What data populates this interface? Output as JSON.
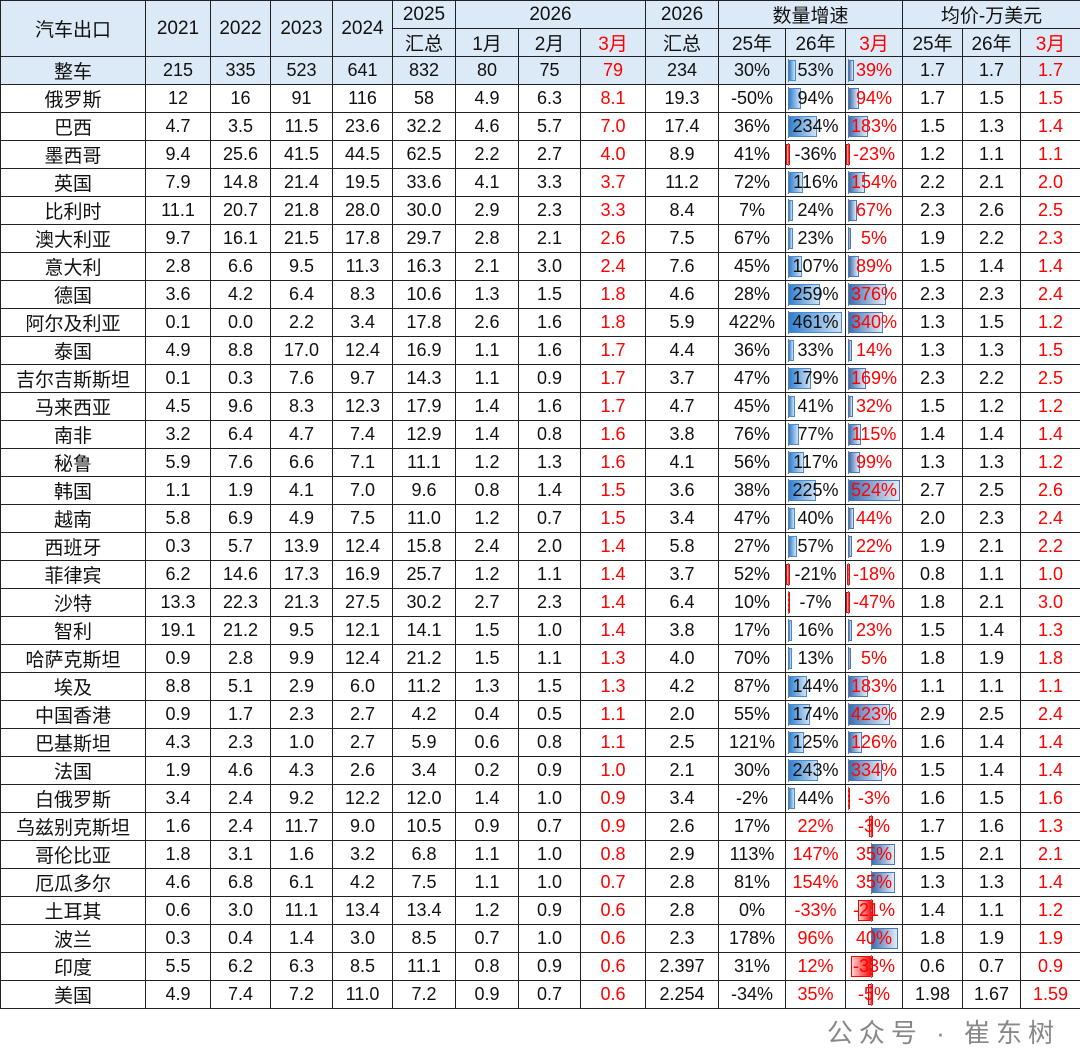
{
  "header": {
    "label": "汽车出口",
    "years": [
      "2021",
      "2022",
      "2023",
      "2024"
    ],
    "y2025": "2025",
    "sum": "汇总",
    "y2026": "2026",
    "months": [
      "1月",
      "2月",
      "3月"
    ],
    "growth": "数量增速",
    "growth_cols": [
      "25年",
      "26年",
      "3月"
    ],
    "price": "均价-万美元",
    "price_cols": [
      "25年",
      "26年",
      "3月"
    ]
  },
  "colors": {
    "accent_red": "#ff0000",
    "header_bg": "#dce9f6",
    "bar_blue": "#2f7fd0"
  },
  "rows": [
    [
      "整车",
      "215",
      "335",
      "523",
      "641",
      "832",
      "80",
      "75",
      "79",
      "234",
      "30%",
      "53%",
      "39%",
      "1.7",
      "1.7",
      "1.7"
    ],
    [
      "俄罗斯",
      "12",
      "16",
      "91",
      "116",
      "58",
      "4.9",
      "6.3",
      "8.1",
      "19.3",
      "-50%",
      "94%",
      "94%",
      "1.7",
      "1.5",
      "1.5"
    ],
    [
      "巴西",
      "4.7",
      "3.5",
      "11.5",
      "23.6",
      "32.2",
      "4.6",
      "5.7",
      "7.0",
      "17.4",
      "36%",
      "234%",
      "183%",
      "1.5",
      "1.3",
      "1.4"
    ],
    [
      "墨西哥",
      "9.4",
      "25.6",
      "41.5",
      "44.5",
      "62.5",
      "2.2",
      "2.7",
      "4.0",
      "8.9",
      "41%",
      "-36%",
      "-23%",
      "1.2",
      "1.1",
      "1.1"
    ],
    [
      "英国",
      "7.9",
      "14.8",
      "21.4",
      "19.5",
      "33.6",
      "4.1",
      "3.3",
      "3.7",
      "11.2",
      "72%",
      "116%",
      "154%",
      "2.2",
      "2.1",
      "2.0"
    ],
    [
      "比利时",
      "11.1",
      "20.7",
      "21.8",
      "28.0",
      "30.0",
      "2.9",
      "2.3",
      "3.3",
      "8.4",
      "7%",
      "24%",
      "67%",
      "2.3",
      "2.6",
      "2.5"
    ],
    [
      "澳大利亚",
      "9.7",
      "16.1",
      "21.5",
      "17.8",
      "29.7",
      "2.8",
      "2.1",
      "2.6",
      "7.5",
      "67%",
      "23%",
      "5%",
      "1.9",
      "2.2",
      "2.3"
    ],
    [
      "意大利",
      "2.8",
      "6.6",
      "9.5",
      "11.3",
      "16.3",
      "2.1",
      "3.0",
      "2.4",
      "7.6",
      "45%",
      "107%",
      "89%",
      "1.5",
      "1.4",
      "1.4"
    ],
    [
      "德国",
      "3.6",
      "4.2",
      "6.4",
      "8.3",
      "10.6",
      "1.3",
      "1.5",
      "1.8",
      "4.6",
      "28%",
      "259%",
      "376%",
      "2.3",
      "2.3",
      "2.4"
    ],
    [
      "阿尔及利亚",
      "0.1",
      "0.0",
      "2.2",
      "3.4",
      "17.8",
      "2.6",
      "1.6",
      "1.8",
      "5.9",
      "422%",
      "461%",
      "340%",
      "1.3",
      "1.5",
      "1.2"
    ],
    [
      "泰国",
      "4.9",
      "8.8",
      "17.0",
      "12.4",
      "16.9",
      "1.1",
      "1.6",
      "1.7",
      "4.4",
      "36%",
      "33%",
      "14%",
      "1.3",
      "1.3",
      "1.5"
    ],
    [
      "吉尔吉斯斯坦",
      "0.1",
      "0.3",
      "7.6",
      "9.7",
      "14.3",
      "1.1",
      "0.9",
      "1.7",
      "3.7",
      "47%",
      "179%",
      "169%",
      "2.3",
      "2.2",
      "2.5"
    ],
    [
      "马来西亚",
      "4.5",
      "9.6",
      "8.3",
      "12.3",
      "17.9",
      "1.4",
      "1.6",
      "1.7",
      "4.7",
      "45%",
      "41%",
      "32%",
      "1.5",
      "1.2",
      "1.2"
    ],
    [
      "南非",
      "3.2",
      "6.4",
      "4.7",
      "7.4",
      "12.9",
      "1.4",
      "0.8",
      "1.6",
      "3.8",
      "76%",
      "77%",
      "115%",
      "1.4",
      "1.4",
      "1.4"
    ],
    [
      "秘鲁",
      "5.9",
      "7.6",
      "6.6",
      "7.1",
      "11.1",
      "1.2",
      "1.3",
      "1.6",
      "4.1",
      "56%",
      "117%",
      "99%",
      "1.3",
      "1.3",
      "1.2"
    ],
    [
      "韩国",
      "1.1",
      "1.9",
      "4.1",
      "7.0",
      "9.6",
      "0.8",
      "1.4",
      "1.5",
      "3.6",
      "38%",
      "225%",
      "524%",
      "2.7",
      "2.5",
      "2.6"
    ],
    [
      "越南",
      "5.8",
      "6.9",
      "4.9",
      "7.5",
      "11.0",
      "1.2",
      "0.7",
      "1.5",
      "3.4",
      "47%",
      "40%",
      "44%",
      "2.0",
      "2.3",
      "2.4"
    ],
    [
      "西班牙",
      "0.3",
      "5.7",
      "13.9",
      "12.4",
      "15.8",
      "2.4",
      "2.0",
      "1.4",
      "5.8",
      "27%",
      "57%",
      "22%",
      "1.9",
      "2.1",
      "2.2"
    ],
    [
      "菲律宾",
      "6.2",
      "14.6",
      "17.3",
      "16.9",
      "25.7",
      "1.2",
      "1.1",
      "1.4",
      "3.7",
      "52%",
      "-21%",
      "-18%",
      "0.8",
      "1.1",
      "1.0"
    ],
    [
      "沙特",
      "13.3",
      "22.3",
      "21.3",
      "27.5",
      "30.2",
      "2.7",
      "2.3",
      "1.4",
      "6.4",
      "10%",
      "-7%",
      "-47%",
      "1.8",
      "2.1",
      "3.0"
    ],
    [
      "智利",
      "19.1",
      "21.2",
      "9.5",
      "12.1",
      "14.1",
      "1.5",
      "1.0",
      "1.4",
      "3.8",
      "17%",
      "16%",
      "23%",
      "1.5",
      "1.4",
      "1.3"
    ],
    [
      "哈萨克斯坦",
      "0.9",
      "2.8",
      "9.9",
      "12.4",
      "21.2",
      "1.5",
      "1.1",
      "1.3",
      "4.0",
      "70%",
      "13%",
      "5%",
      "1.8",
      "1.9",
      "1.8"
    ],
    [
      "埃及",
      "8.8",
      "5.1",
      "2.9",
      "6.0",
      "11.2",
      "1.3",
      "1.5",
      "1.3",
      "4.2",
      "87%",
      "144%",
      "183%",
      "1.1",
      "1.1",
      "1.1"
    ],
    [
      "中国香港",
      "0.9",
      "1.7",
      "2.3",
      "2.7",
      "4.2",
      "0.4",
      "0.5",
      "1.1",
      "2.0",
      "55%",
      "174%",
      "423%",
      "2.9",
      "2.5",
      "2.4"
    ],
    [
      "巴基斯坦",
      "4.3",
      "2.3",
      "1.0",
      "2.7",
      "5.9",
      "0.6",
      "0.8",
      "1.1",
      "2.5",
      "121%",
      "125%",
      "126%",
      "1.6",
      "1.4",
      "1.4"
    ],
    [
      "法国",
      "1.9",
      "4.6",
      "4.3",
      "2.6",
      "3.4",
      "0.2",
      "0.9",
      "1.0",
      "2.1",
      "30%",
      "243%",
      "334%",
      "1.5",
      "1.4",
      "1.4"
    ],
    [
      "白俄罗斯",
      "3.4",
      "2.4",
      "9.2",
      "12.2",
      "12.0",
      "1.4",
      "1.0",
      "0.9",
      "3.4",
      "-2%",
      "44%",
      "-3%",
      "1.6",
      "1.5",
      "1.6"
    ],
    [
      "乌兹别克斯坦",
      "1.6",
      "2.4",
      "11.7",
      "9.0",
      "10.5",
      "0.9",
      "0.7",
      "0.9",
      "2.6",
      "17%",
      "22%",
      "-3%",
      "1.7",
      "1.6",
      "1.3"
    ],
    [
      "哥伦比亚",
      "1.8",
      "3.1",
      "1.6",
      "3.2",
      "6.8",
      "1.1",
      "1.0",
      "0.8",
      "2.9",
      "113%",
      "147%",
      "35%",
      "1.5",
      "2.1",
      "2.1"
    ],
    [
      "厄瓜多尔",
      "4.6",
      "6.8",
      "6.1",
      "4.2",
      "7.5",
      "1.1",
      "1.0",
      "0.7",
      "2.8",
      "81%",
      "154%",
      "35%",
      "1.3",
      "1.3",
      "1.4"
    ],
    [
      "土耳其",
      "0.6",
      "3.0",
      "11.1",
      "13.4",
      "13.4",
      "1.2",
      "0.9",
      "0.6",
      "2.8",
      "0%",
      "-33%",
      "-21%",
      "1.4",
      "1.1",
      "1.2"
    ],
    [
      "波兰",
      "0.3",
      "0.4",
      "1.4",
      "3.0",
      "8.5",
      "0.7",
      "1.0",
      "0.6",
      "2.3",
      "178%",
      "96%",
      "40%",
      "1.8",
      "1.9",
      "1.9"
    ],
    [
      "印度",
      "5.5",
      "6.2",
      "6.3",
      "8.5",
      "11.1",
      "0.8",
      "0.9",
      "0.6",
      "2.397",
      "31%",
      "12%",
      "-33%",
      "0.6",
      "0.7",
      "0.9"
    ],
    [
      "美国",
      "4.9",
      "7.4",
      "7.2",
      "11.0",
      "7.2",
      "0.9",
      "0.7",
      "0.6",
      "2.254",
      "-34%",
      "35%",
      "-5%",
      "1.98",
      "1.67",
      "1.59"
    ]
  ],
  "watermark": "公众号 · 崔东树"
}
